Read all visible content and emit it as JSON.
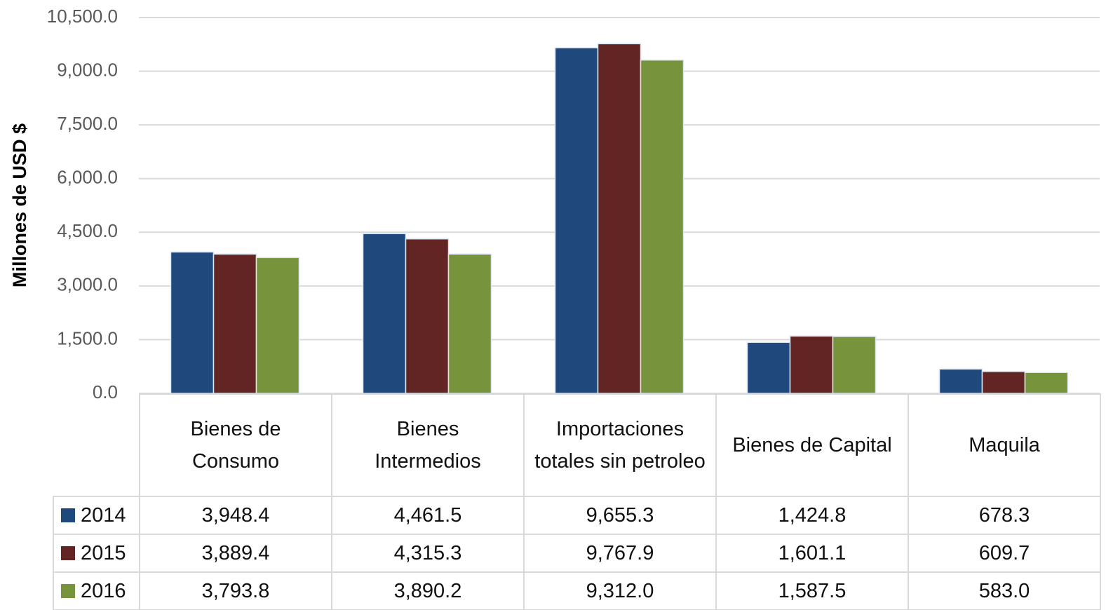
{
  "chart_data": {
    "type": "bar",
    "y_label": "Millones de USD $",
    "categories": [
      "Bienes de Consumo",
      "Bienes Intermedios",
      "Importaciones totales sin petroleo",
      "Bienes de Capital",
      "Maquila"
    ],
    "series": [
      {
        "name": "2014",
        "color": "#1f497d",
        "values": [
          3948.4,
          4461.5,
          9655.3,
          1424.8,
          678.3
        ],
        "value_labels": [
          "3,948.4",
          "4,461.5",
          "9,655.3",
          "1,424.8",
          "678.3"
        ]
      },
      {
        "name": "2015",
        "color": "#632523",
        "values": [
          3889.4,
          4315.3,
          9767.9,
          1601.1,
          609.7
        ],
        "value_labels": [
          "3,889.4",
          "4,315.3",
          "9,767.9",
          "1,601.1",
          "609.7"
        ]
      },
      {
        "name": "2016",
        "color": "#77933c",
        "values": [
          3793.8,
          3890.2,
          9312.0,
          1587.5,
          583.0
        ],
        "value_labels": [
          "3,793.8",
          "3,890.2",
          "9,312.0",
          "1,587.5",
          "583.0"
        ]
      }
    ],
    "ylim": [
      0,
      10500
    ],
    "yticks": [
      {
        "value": 0,
        "label": "0.0"
      },
      {
        "value": 1500,
        "label": "1,500.0"
      },
      {
        "value": 3000,
        "label": "3,000.0"
      },
      {
        "value": 4500,
        "label": "4,500.0"
      },
      {
        "value": 6000,
        "label": "6,000.0"
      },
      {
        "value": 7500,
        "label": "7,500.0"
      },
      {
        "value": 9000,
        "label": "9,000.0"
      },
      {
        "value": 10500,
        "label": "10,500.0"
      }
    ],
    "grid": true
  }
}
